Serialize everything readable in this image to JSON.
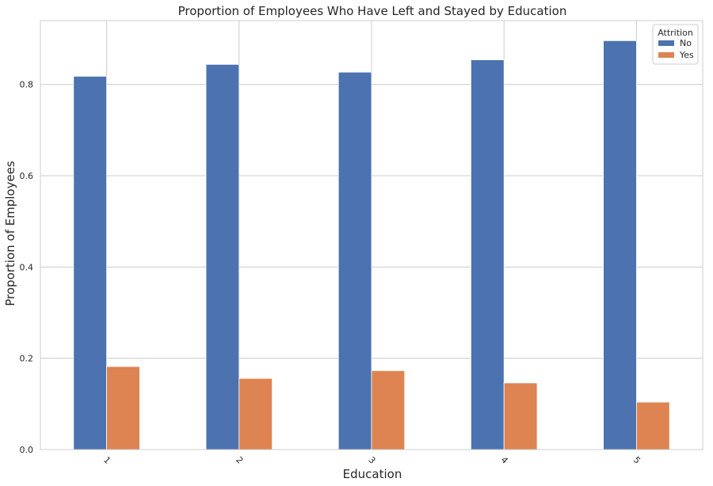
{
  "chart_data": {
    "type": "bar",
    "title": "Proportion of Employees Who Have Left and Stayed by Education",
    "xlabel": "Education",
    "ylabel": "Proportion of Employees",
    "categories": [
      "1",
      "2",
      "3",
      "4",
      "5"
    ],
    "series": [
      {
        "name": "No",
        "color": "#4c72b0",
        "values": [
          0.818,
          0.844,
          0.827,
          0.854,
          0.896
        ]
      },
      {
        "name": "Yes",
        "color": "#dd8452",
        "values": [
          0.182,
          0.156,
          0.173,
          0.146,
          0.104
        ]
      }
    ],
    "ylim": [
      0,
      0.94
    ],
    "yticks": [
      0.0,
      0.2,
      0.4,
      0.6,
      0.8
    ],
    "ytick_labels": [
      "0.0",
      "0.2",
      "0.4",
      "0.6",
      "0.8"
    ],
    "legend": {
      "title": "Attrition",
      "position": "top-right"
    },
    "grid": true
  }
}
